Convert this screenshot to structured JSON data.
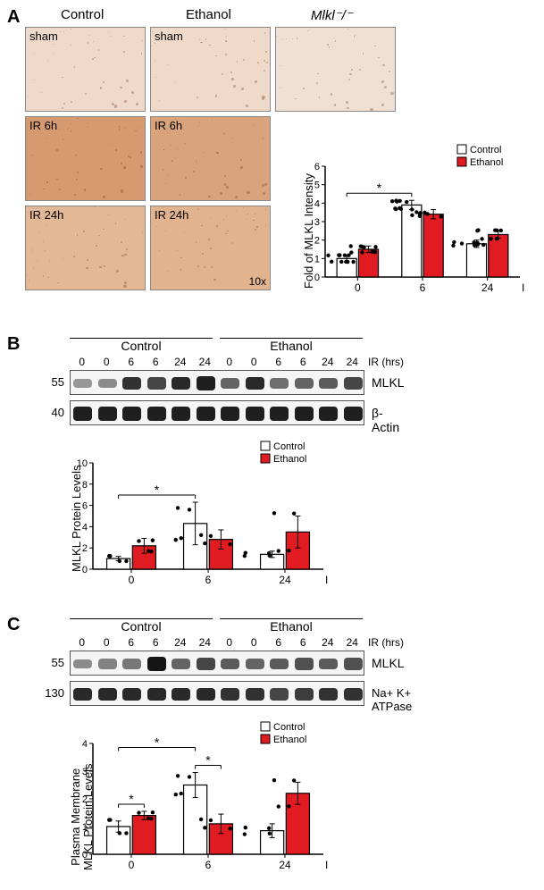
{
  "colors": {
    "control_fill": "#ffffff",
    "ethanol_fill": "#e11b22",
    "bar_stroke": "#000000",
    "scatter_fill": "#000000",
    "chart_bg": "#ffffff",
    "micrograph_tint_light": "#efd9c9",
    "micrograph_tint_dark": "#d59a6f"
  },
  "panelA": {
    "label": "A",
    "columns": [
      "Control",
      "Ethanol"
    ],
    "knockout_label": "Mlkl⁻/⁻",
    "row_labels": [
      "sham",
      "IR 6h",
      "IR 24h"
    ],
    "magnification": "10x",
    "chart": {
      "type": "bar",
      "ylabel": "Fold of MLKL Intensity",
      "xlabel": "IR (hrs)",
      "categories": [
        "0",
        "6",
        "24"
      ],
      "ylim": [
        0,
        6
      ],
      "ytick_step": 1,
      "legend": [
        "Control",
        "Ethanol"
      ],
      "sig_marker": "*",
      "sig_between": [
        "0-Control",
        "6-Control"
      ],
      "series": {
        "Control": {
          "means": [
            1.0,
            3.9,
            1.8
          ],
          "sem": [
            0.15,
            0.25,
            0.2
          ],
          "n": 10
        },
        "Ethanol": {
          "means": [
            1.5,
            3.4,
            2.3
          ],
          "sem": [
            0.18,
            0.25,
            0.2
          ],
          "n": 10
        }
      },
      "bar_width": 0.38,
      "label_fontsize": 13,
      "tick_fontsize": 11
    }
  },
  "panelB": {
    "label": "B",
    "lane_groups": [
      "Control",
      "Ethanol"
    ],
    "lane_times": [
      "0",
      "0",
      "6",
      "6",
      "24",
      "24",
      "0",
      "0",
      "6",
      "6",
      "24",
      "24"
    ],
    "lane_axis_label": "IR (hrs)",
    "blots": [
      {
        "name": "MLKL",
        "mw": "55",
        "intensity": [
          0.3,
          0.35,
          0.8,
          0.7,
          0.85,
          0.9,
          0.55,
          0.85,
          0.5,
          0.55,
          0.6,
          0.7
        ]
      },
      {
        "name": "β- Actin",
        "mw": "40",
        "intensity": [
          0.9,
          0.9,
          0.9,
          0.9,
          0.9,
          0.9,
          0.9,
          0.9,
          0.9,
          0.9,
          0.9,
          0.9
        ]
      }
    ],
    "chart": {
      "type": "bar",
      "ylabel": "MLKL Protein Levels",
      "xlabel": "IR (hrs)",
      "categories": [
        "0",
        "6",
        "24"
      ],
      "ylim": [
        0,
        10
      ],
      "ytick_step": 2,
      "legend": [
        "Control",
        "Ethanol"
      ],
      "sig_marker": "*",
      "sig_between": [
        "0-Control",
        "6-Control"
      ],
      "series": {
        "Control": {
          "means": [
            1.0,
            4.3,
            1.4
          ],
          "sem": [
            0.2,
            2.0,
            0.3
          ],
          "n": 4
        },
        "Ethanol": {
          "means": [
            2.2,
            2.8,
            3.5
          ],
          "sem": [
            0.7,
            0.9,
            1.5
          ],
          "n": 4
        }
      },
      "bar_width": 0.38
    }
  },
  "panelC": {
    "label": "C",
    "lane_groups": [
      "Control",
      "Ethanol"
    ],
    "lane_times": [
      "0",
      "0",
      "6",
      "6",
      "24",
      "24",
      "0",
      "0",
      "6",
      "6",
      "24",
      "24"
    ],
    "lane_axis_label": "IR (hrs)",
    "blots": [
      {
        "name": "MLKL",
        "mw": "55",
        "intensity": [
          0.35,
          0.4,
          0.45,
          0.95,
          0.55,
          0.7,
          0.6,
          0.55,
          0.6,
          0.65,
          0.6,
          0.65
        ]
      },
      {
        "name": "Na+ K+ ATPase",
        "mw": "130",
        "intensity": [
          0.85,
          0.85,
          0.85,
          0.85,
          0.85,
          0.85,
          0.8,
          0.8,
          0.7,
          0.75,
          0.8,
          0.8
        ]
      }
    ],
    "chart": {
      "type": "bar",
      "ylabel": "Plasma Membrane\nMLKL Protein Levels",
      "xlabel": "IR (hrs)",
      "categories": [
        "0",
        "6",
        "24"
      ],
      "ylim": [
        0,
        4
      ],
      "ytick_step": 1,
      "legend": [
        "Control",
        "Ethanol"
      ],
      "sig_markers": [
        "*",
        "*",
        "*"
      ],
      "sig_pairs": [
        [
          "0-Control",
          "0-Ethanol"
        ],
        [
          "0-Control",
          "6-Control"
        ],
        [
          "6-Control",
          "6-Ethanol"
        ]
      ],
      "series": {
        "Control": {
          "means": [
            1.0,
            2.5,
            0.85
          ],
          "sem": [
            0.2,
            0.45,
            0.25
          ],
          "n": 4
        },
        "Ethanol": {
          "means": [
            1.4,
            1.1,
            2.2
          ],
          "sem": [
            0.15,
            0.35,
            0.4
          ],
          "n": 4
        }
      },
      "bar_width": 0.38
    }
  }
}
